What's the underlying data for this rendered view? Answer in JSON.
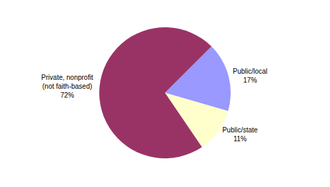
{
  "chart_data": {
    "type": "pie",
    "categories": [
      "Public/local",
      "Public/state",
      "Private, nonprofit (not faith-based)"
    ],
    "values": [
      17,
      11,
      72
    ],
    "value_labels": [
      "17%",
      "11%",
      "72%"
    ],
    "colors": [
      "#9999ff",
      "#ffffcc",
      "#993366"
    ],
    "data_labels": true
  }
}
